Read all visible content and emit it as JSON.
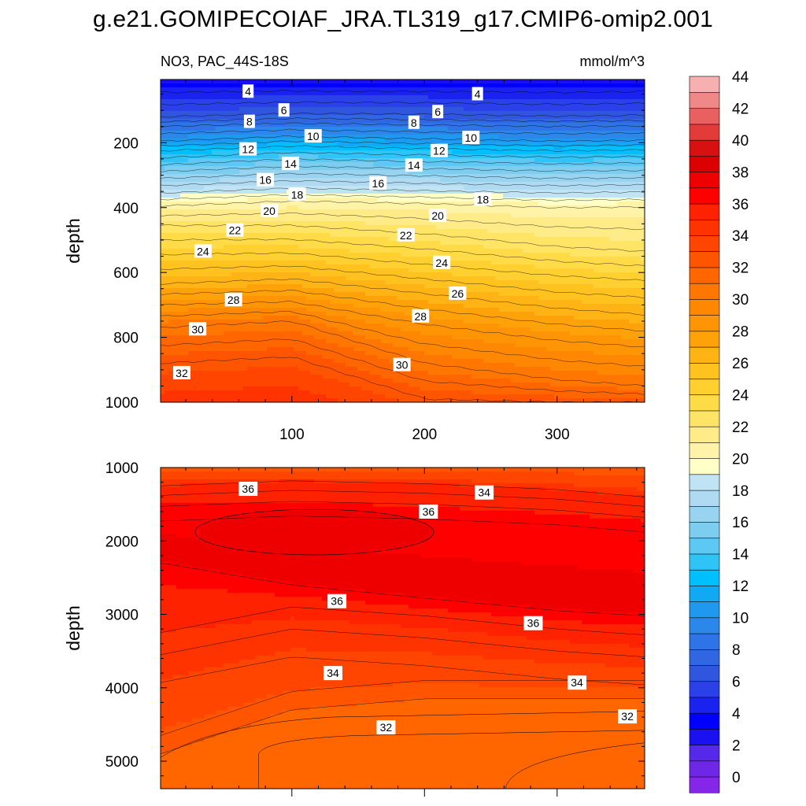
{
  "title": "g.e21.GOMIPECOIAF_JRA.TL319_g17.CMIP6-omip2.001",
  "chart_data": [
    {
      "type": "contour",
      "panel": "upper",
      "left_string": "NO3, PAC_44S-18S",
      "right_string": "mmol/m^3",
      "ylabel": "depth",
      "xlim": [
        1,
        366
      ],
      "ylim": [
        1000,
        5
      ],
      "x_ticks": [
        "100",
        "200",
        "300"
      ],
      "y_ticks": [
        "200",
        "400",
        "600",
        "800",
        "1000"
      ],
      "isoline_depths_at_x": {
        "x": [
          1,
          100,
          200,
          300,
          366
        ],
        "levels": [
          {
            "value": 4,
            "depth": [
              45,
              40,
              42,
              45,
              42
            ]
          },
          {
            "value": 6,
            "depth": [
              120,
              110,
              112,
              118,
              115
            ]
          },
          {
            "value": 8,
            "depth": [
              150,
              140,
              145,
              150,
              148
            ]
          },
          {
            "value": 10,
            "depth": [
              195,
              180,
              188,
              195,
              192
            ]
          },
          {
            "value": 12,
            "depth": [
              225,
              210,
              218,
              225,
              222
            ]
          },
          {
            "value": 14,
            "depth": [
              268,
              250,
              258,
              265,
              262
            ]
          },
          {
            "value": 16,
            "depth": [
              310,
              295,
              302,
              310,
              308
            ]
          },
          {
            "value": 18,
            "depth": [
              355,
              340,
              348,
              355,
              352
            ]
          },
          {
            "value": 20,
            "depth": [
              395,
              380,
              388,
              400,
              398
            ]
          },
          {
            "value": 22,
            "depth": [
              455,
              455,
              480,
              520,
              535
            ]
          },
          {
            "value": 24,
            "depth": [
              545,
              540,
              575,
              610,
              625
            ]
          },
          {
            "value": 26,
            "depth": [
              635,
              620,
              665,
              710,
              730
            ]
          },
          {
            "value": 28,
            "depth": [
              700,
              690,
              760,
              810,
              830
            ]
          },
          {
            "value": 30,
            "depth": [
              770,
              750,
              880,
              930,
              950
            ]
          },
          {
            "value": 32,
            "depth": [
              880,
              860,
              990,
              1000,
              1000
            ]
          }
        ]
      },
      "contour_labels": [
        {
          "text": "4",
          "x": 67,
          "depth": 42
        },
        {
          "text": "4",
          "x": 240,
          "depth": 50
        },
        {
          "text": "6",
          "x": 94,
          "depth": 100
        },
        {
          "text": "6",
          "x": 210,
          "depth": 105
        },
        {
          "text": "8",
          "x": 68,
          "depth": 135
        },
        {
          "text": "8",
          "x": 192,
          "depth": 138
        },
        {
          "text": "10",
          "x": 116,
          "depth": 180
        },
        {
          "text": "10",
          "x": 235,
          "depth": 185
        },
        {
          "text": "12",
          "x": 67,
          "depth": 220
        },
        {
          "text": "12",
          "x": 211,
          "depth": 225
        },
        {
          "text": "14",
          "x": 99,
          "depth": 265
        },
        {
          "text": "14",
          "x": 192,
          "depth": 270
        },
        {
          "text": "16",
          "x": 80,
          "depth": 315
        },
        {
          "text": "16",
          "x": 165,
          "depth": 325
        },
        {
          "text": "18",
          "x": 104,
          "depth": 360
        },
        {
          "text": "18",
          "x": 244,
          "depth": 375
        },
        {
          "text": "20",
          "x": 83,
          "depth": 410
        },
        {
          "text": "20",
          "x": 210,
          "depth": 425
        },
        {
          "text": "22",
          "x": 57,
          "depth": 470
        },
        {
          "text": "22",
          "x": 186,
          "depth": 485
        },
        {
          "text": "24",
          "x": 33,
          "depth": 535
        },
        {
          "text": "24",
          "x": 213,
          "depth": 570
        },
        {
          "text": "26",
          "x": 225,
          "depth": 665
        },
        {
          "text": "28",
          "x": 56,
          "depth": 685
        },
        {
          "text": "28",
          "x": 197,
          "depth": 735
        },
        {
          "text": "30",
          "x": 29,
          "depth": 775
        },
        {
          "text": "30",
          "x": 183,
          "depth": 885
        },
        {
          "text": "32",
          "x": 17,
          "depth": 910
        }
      ]
    },
    {
      "type": "contour",
      "panel": "lower",
      "ylabel": "depth",
      "xlim": [
        1,
        366
      ],
      "ylim": [
        5375,
        1000
      ],
      "y_ticks": [
        "1000",
        "2000",
        "3000",
        "4000",
        "5000"
      ],
      "isoline_depths_at_x": {
        "x": [
          1,
          100,
          200,
          300,
          366
        ],
        "levels": [
          {
            "value": 32,
            "depth": [
              4900,
              4300,
              4150,
              4150,
              4150
            ]
          },
          {
            "value": 34,
            "depth": [
              3550,
              3200,
              3320,
              3500,
              3580
            ]
          },
          {
            "value": 36,
            "depth": [
              2300,
              2600,
              2780,
              2950,
              3020
            ]
          },
          {
            "value": 34,
            "depth": [
              1250,
              1180,
              1220,
              1300,
              1400
            ]
          }
        ]
      },
      "contour_labels": [
        {
          "text": "36",
          "x": 67,
          "depth": 1290
        },
        {
          "text": "36",
          "x": 203,
          "depth": 1600
        },
        {
          "text": "34",
          "x": 245,
          "depth": 1340
        },
        {
          "text": "36",
          "x": 134,
          "depth": 2820
        },
        {
          "text": "36",
          "x": 282,
          "depth": 3120
        },
        {
          "text": "34",
          "x": 131,
          "depth": 3800
        },
        {
          "text": "34",
          "x": 315,
          "depth": 3930
        },
        {
          "text": "32",
          "x": 171,
          "depth": 4540
        },
        {
          "text": "32",
          "x": 353,
          "depth": 4390
        }
      ]
    }
  ],
  "colorbar": {
    "labels": [
      "0",
      "2",
      "4",
      "6",
      "8",
      "10",
      "12",
      "14",
      "16",
      "18",
      "20",
      "22",
      "24",
      "26",
      "28",
      "30",
      "32",
      "34",
      "36",
      "38",
      "40",
      "42",
      "44"
    ],
    "colors": [
      "#8526e8",
      "#6e27e6",
      "#5528ea",
      "#1a10f0",
      "#0000ff",
      "#1a22f0",
      "#2a40e8",
      "#3056e0",
      "#3166e2",
      "#2f74e6",
      "#2b88ea",
      "#1f98ef",
      "#12a8f2",
      "#00bfff",
      "#30c4f6",
      "#5cc8f3",
      "#7dcdf0",
      "#98d4f0",
      "#afdaf1",
      "#c0e4f4",
      "#ffffc8",
      "#fff3a8",
      "#ffeb88",
      "#ffe466",
      "#ffdb48",
      "#ffd030",
      "#ffc21f",
      "#ffb314",
      "#ffa20a",
      "#ff9505",
      "#ff8702",
      "#ff7700",
      "#ff6600",
      "#ff5500",
      "#ff4500",
      "#ff3300",
      "#ff2200",
      "#ff0000",
      "#ee0000",
      "#dd0000",
      "#d81010",
      "#e33a3a",
      "#e86060",
      "#f08888",
      "#f7b0b0"
    ]
  }
}
